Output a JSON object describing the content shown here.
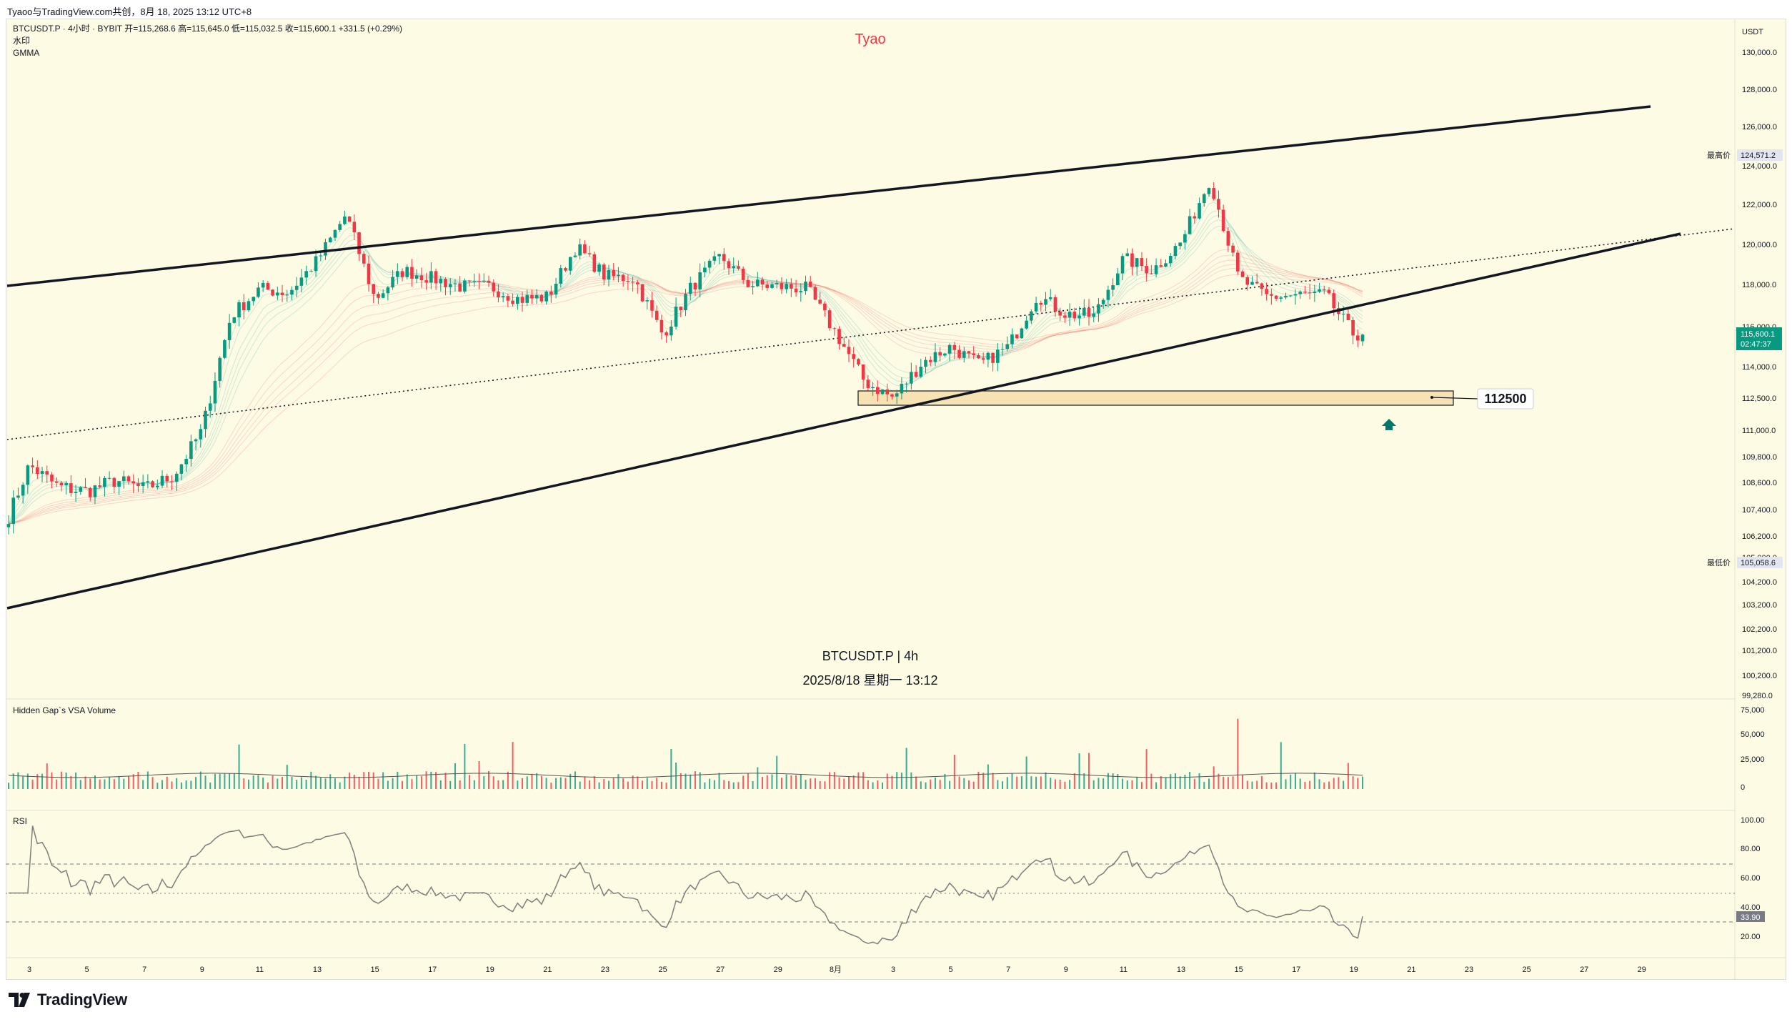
{
  "header": {
    "share_text": "Tyaoo与TradingView.com共创，8月 18, 2025 13:12 UTC+8"
  },
  "legend": {
    "symbol_line": "BTCUSDT.P · 4小时 · BYBIT  开=115,268.6  高=115,645.0  低=115,032.5  收=115,600.1  +331.5 (+0.29%)",
    "indicator_1": "水印",
    "indicator_2": "GMMA"
  },
  "watermark": {
    "author": "Tyao",
    "symbol": "BTCUSDT.P | 4h",
    "datetime": "2025/8/18 星期一 13:12"
  },
  "price_axis": {
    "currency": "USDT",
    "ticks": [
      "130,000.0",
      "128,000.0",
      "126,000.0",
      "124,000.0",
      "122,000.0",
      "120,000.0",
      "118,000.0",
      "116,000.0",
      "114,000.0",
      "112,500.0",
      "111,000.0",
      "109,800.0",
      "108,600.0",
      "107,400.0",
      "106,200.0",
      "105,000.0",
      "104,200.0",
      "103,200.0",
      "102,200.0",
      "101,200.0",
      "100,200.0",
      "99,280.0"
    ],
    "high_label": "最高价",
    "high_value": "124,571.2",
    "low_label": "最低价",
    "low_value": "105,058.6",
    "last_price": "115,600.1",
    "countdown": "02:47:37"
  },
  "volume_pane": {
    "title": "Hidden Gap`s VSA Volume",
    "ticks": [
      "75,000",
      "50,000",
      "25,000",
      "0"
    ]
  },
  "rsi_pane": {
    "title": "RSI",
    "ticks": [
      "100.00",
      "80.00",
      "60.00",
      "40.00",
      "20.00"
    ],
    "last_value": "33.90"
  },
  "time_axis": {
    "labels": [
      "3",
      "5",
      "7",
      "9",
      "11",
      "13",
      "15",
      "17",
      "19",
      "21",
      "23",
      "25",
      "27",
      "29",
      "8月",
      "3",
      "5",
      "7",
      "9",
      "11",
      "13",
      "15",
      "17",
      "19",
      "21",
      "23",
      "25",
      "27",
      "29"
    ]
  },
  "annotations": {
    "target_label": "112500"
  },
  "colors": {
    "background": "#fdfbe4",
    "up": "#089981",
    "down": "#f23645",
    "watermark_author": "#f23645",
    "last_price_bg": "#089981"
  },
  "footer": {
    "brand": "TradingView"
  },
  "chart_data": {
    "type": "candlestick",
    "symbol": "BTCUSDT.P",
    "interval": "4h",
    "close_series_approx": [
      {
        "date": "2025-07-02",
        "close": 106200
      },
      {
        "date": "2025-07-03",
        "close": 109400
      },
      {
        "date": "2025-07-04",
        "close": 108400
      },
      {
        "date": "2025-07-05",
        "close": 108200
      },
      {
        "date": "2025-07-06",
        "close": 108700
      },
      {
        "date": "2025-07-07",
        "close": 108300
      },
      {
        "date": "2025-07-08",
        "close": 108900
      },
      {
        "date": "2025-07-09",
        "close": 111000
      },
      {
        "date": "2025-07-10",
        "close": 116500
      },
      {
        "date": "2025-07-11",
        "close": 117800
      },
      {
        "date": "2025-07-12",
        "close": 117600
      },
      {
        "date": "2025-07-13",
        "close": 119200
      },
      {
        "date": "2025-07-14",
        "close": 121500
      },
      {
        "date": "2025-07-15",
        "close": 117300
      },
      {
        "date": "2025-07-16",
        "close": 118700
      },
      {
        "date": "2025-07-17",
        "close": 118300
      },
      {
        "date": "2025-07-18",
        "close": 117900
      },
      {
        "date": "2025-07-19",
        "close": 117900
      },
      {
        "date": "2025-07-20",
        "close": 117300
      },
      {
        "date": "2025-07-21",
        "close": 117400
      },
      {
        "date": "2025-07-22",
        "close": 119900
      },
      {
        "date": "2025-07-23",
        "close": 118400
      },
      {
        "date": "2025-07-24",
        "close": 118300
      },
      {
        "date": "2025-07-25",
        "close": 115600
      },
      {
        "date": "2025-07-26",
        "close": 117900
      },
      {
        "date": "2025-07-27",
        "close": 119400
      },
      {
        "date": "2025-07-28",
        "close": 118000
      },
      {
        "date": "2025-07-29",
        "close": 117900
      },
      {
        "date": "2025-07-30",
        "close": 117800
      },
      {
        "date": "2025-07-31",
        "close": 115700
      },
      {
        "date": "2025-08-01",
        "close": 113300
      },
      {
        "date": "2025-08-02",
        "close": 112500
      },
      {
        "date": "2025-08-03",
        "close": 114200
      },
      {
        "date": "2025-08-04",
        "close": 115000
      },
      {
        "date": "2025-08-05",
        "close": 114100
      },
      {
        "date": "2025-08-06",
        "close": 115000
      },
      {
        "date": "2025-08-07",
        "close": 117500
      },
      {
        "date": "2025-08-08",
        "close": 116600
      },
      {
        "date": "2025-08-09",
        "close": 116500
      },
      {
        "date": "2025-08-10",
        "close": 119300
      },
      {
        "date": "2025-08-11",
        "close": 118700
      },
      {
        "date": "2025-08-12",
        "close": 120100
      },
      {
        "date": "2025-08-13",
        "close": 123300
      },
      {
        "date": "2025-08-14",
        "close": 118300
      },
      {
        "date": "2025-08-15",
        "close": 117400
      },
      {
        "date": "2025-08-16",
        "close": 117500
      },
      {
        "date": "2025-08-17",
        "close": 117500
      },
      {
        "date": "2025-08-18",
        "close": 115600
      }
    ],
    "ohlc_last": {
      "open": 115268.6,
      "high": 115645.0,
      "low": 115032.5,
      "close": 115600.1,
      "change": 331.5,
      "change_pct": 0.29
    },
    "price_range": [
      99280,
      131000
    ],
    "period_high": 124571.2,
    "period_low": 105058.6,
    "support_zone": [
      112300,
      113000
    ],
    "target_price": 112500,
    "channel_lines": [
      {
        "name": "upper",
        "start": {
          "date": "2025-07-02",
          "price": 118000
        },
        "end": {
          "date": "2025-08-27",
          "price": 127000
        }
      },
      {
        "name": "lower",
        "start": {
          "date": "2025-07-02",
          "price": 103300
        },
        "end": {
          "date": "2025-08-28",
          "price": 120400
        }
      },
      {
        "name": "dotted",
        "start": {
          "date": "2025-07-02",
          "price": 110600
        },
        "end": {
          "date": "2025-08-29",
          "price": 120700
        }
      }
    ],
    "rsi_last": 33.9,
    "rsi_levels": [
      70,
      50,
      30
    ],
    "volume_spike_max": 67000
  }
}
